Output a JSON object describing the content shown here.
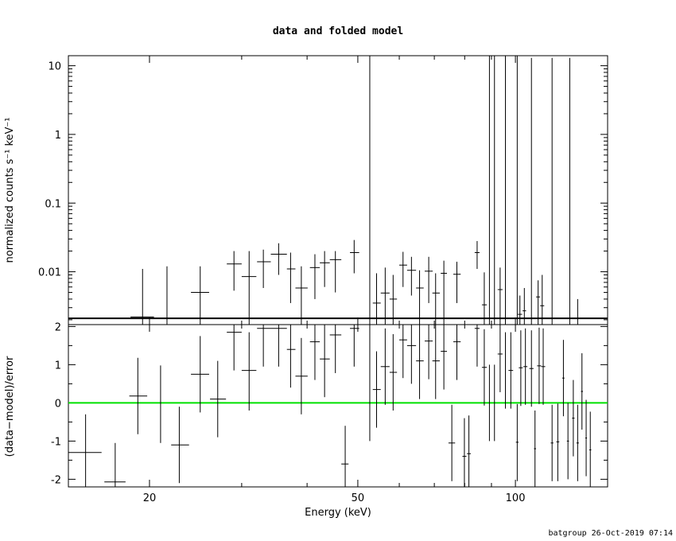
{
  "chart_data": [
    {
      "type": "scatter",
      "title": "data and folded model",
      "xlabel": "",
      "ylabel": "normalized counts s⁻¹ keV⁻¹",
      "xscale": "log",
      "yscale": "log",
      "xlim": [
        14,
        150
      ],
      "ylim": [
        0.0017,
        14
      ],
      "x_ticks": [
        20,
        50,
        100
      ],
      "y_ticks": [
        {
          "value": 10,
          "label": "10"
        },
        {
          "value": 1,
          "label": "1"
        },
        {
          "value": 0.1,
          "label": "0.1"
        },
        {
          "value": 0.01,
          "label": "0.01"
        }
      ],
      "model_line": {
        "color": "#000000",
        "value": 0.0021
      },
      "points": [
        {
          "x": 19.4,
          "xlo": 18.4,
          "xhi": 20.4,
          "y": 0.0022,
          "ylo": 0.0017,
          "yhi": 0.011
        },
        {
          "x": 21.6,
          "xlo": 21.6,
          "xhi": 21.6,
          "y": 0.0017,
          "ylo": 0.0017,
          "yhi": 0.012
        },
        {
          "x": 25.0,
          "xlo": 24.0,
          "xhi": 26.0,
          "y": 0.005,
          "ylo": 0.0017,
          "yhi": 0.012
        },
        {
          "x": 29.0,
          "xlo": 28.1,
          "xhi": 30.0,
          "y": 0.013,
          "ylo": 0.0053,
          "yhi": 0.02
        },
        {
          "x": 31.0,
          "xlo": 30.0,
          "xhi": 32.0,
          "y": 0.0085,
          "ylo": 0.0017,
          "yhi": 0.02
        },
        {
          "x": 33.0,
          "xlo": 32.1,
          "xhi": 34.1,
          "y": 0.014,
          "ylo": 0.0058,
          "yhi": 0.021
        },
        {
          "x": 35.3,
          "xlo": 34.1,
          "xhi": 36.6,
          "y": 0.018,
          "ylo": 0.009,
          "yhi": 0.026
        },
        {
          "x": 37.2,
          "xlo": 36.6,
          "xhi": 38.0,
          "y": 0.011,
          "ylo": 0.0035,
          "yhi": 0.019
        },
        {
          "x": 39.0,
          "xlo": 38.0,
          "xhi": 40.1,
          "y": 0.0058,
          "ylo": 0.0017,
          "yhi": 0.012
        },
        {
          "x": 41.4,
          "xlo": 40.5,
          "xhi": 42.3,
          "y": 0.0115,
          "ylo": 0.004,
          "yhi": 0.018
        },
        {
          "x": 43.2,
          "xlo": 42.3,
          "xhi": 44.2,
          "y": 0.0135,
          "ylo": 0.006,
          "yhi": 0.02
        },
        {
          "x": 45.3,
          "xlo": 44.2,
          "xhi": 46.5,
          "y": 0.015,
          "ylo": 0.005,
          "yhi": 0.02
        },
        {
          "x": 49.2,
          "xlo": 48.3,
          "xhi": 50.3,
          "y": 0.019,
          "ylo": 0.0095,
          "yhi": 0.029
        },
        {
          "x": 52.7,
          "xlo": 52.7,
          "xhi": 52.7,
          "y": 0.0017,
          "ylo": 0.0017,
          "yhi": 14
        },
        {
          "x": 54.3,
          "xlo": 53.4,
          "xhi": 55.3,
          "y": 0.0035,
          "ylo": 0.0017,
          "yhi": 0.0095
        },
        {
          "x": 56.4,
          "xlo": 55.3,
          "xhi": 57.5,
          "y": 0.0049,
          "ylo": 0.0017,
          "yhi": 0.0115
        },
        {
          "x": 58.4,
          "xlo": 57.5,
          "xhi": 59.4,
          "y": 0.004,
          "ylo": 0.0017,
          "yhi": 0.009
        },
        {
          "x": 61.0,
          "xlo": 60.0,
          "xhi": 62.1,
          "y": 0.0125,
          "ylo": 0.006,
          "yhi": 0.0195
        },
        {
          "x": 63.3,
          "xlo": 62.1,
          "xhi": 64.6,
          "y": 0.0105,
          "ylo": 0.0045,
          "yhi": 0.0165
        },
        {
          "x": 65.6,
          "xlo": 64.6,
          "xhi": 66.8,
          "y": 0.0058,
          "ylo": 0.0017,
          "yhi": 0.0105
        },
        {
          "x": 68.3,
          "xlo": 67.1,
          "xhi": 69.5,
          "y": 0.0102,
          "ylo": 0.0035,
          "yhi": 0.0165
        },
        {
          "x": 70.4,
          "xlo": 69.4,
          "xhi": 71.7,
          "y": 0.0049,
          "ylo": 0.0017,
          "yhi": 0.0095
        },
        {
          "x": 73.0,
          "xlo": 72.0,
          "xhi": 74.0,
          "y": 0.0095,
          "ylo": 0.0017,
          "yhi": 0.0145
        },
        {
          "x": 77.3,
          "xlo": 76.1,
          "xhi": 78.6,
          "y": 0.0092,
          "ylo": 0.0035,
          "yhi": 0.014
        },
        {
          "x": 84.5,
          "xlo": 83.6,
          "xhi": 85.4,
          "y": 0.019,
          "ylo": 0.011,
          "yhi": 0.028
        },
        {
          "x": 87.2,
          "xlo": 86.3,
          "xhi": 88.2,
          "y": 0.0033,
          "ylo": 0.0017,
          "yhi": 0.0098
        },
        {
          "x": 89.2,
          "xlo": 89.2,
          "xhi": 89.2,
          "y": 0.0017,
          "ylo": 0.0017,
          "yhi": 14
        },
        {
          "x": 91.2,
          "xlo": 91.2,
          "xhi": 91.2,
          "y": 0.0017,
          "ylo": 0.0017,
          "yhi": 14
        },
        {
          "x": 93.5,
          "xlo": 92.5,
          "xhi": 94.5,
          "y": 0.0055,
          "ylo": 0.0017,
          "yhi": 0.0115
        },
        {
          "x": 95.7,
          "xlo": 95.7,
          "xhi": 95.7,
          "y": 0.0017,
          "ylo": 0.0017,
          "yhi": 14
        },
        {
          "x": 100.8,
          "xlo": 100.8,
          "xhi": 100.8,
          "y": 0.0017,
          "ylo": 0.0017,
          "yhi": 14
        },
        {
          "x": 102.0,
          "xlo": 101.0,
          "xhi": 103.0,
          "y": 0.0024,
          "ylo": 0.0017,
          "yhi": 0.0045
        },
        {
          "x": 104.0,
          "xlo": 103.2,
          "xhi": 104.8,
          "y": 0.0027,
          "ylo": 0.0017,
          "yhi": 0.0058
        },
        {
          "x": 107.3,
          "xlo": 107.3,
          "xhi": 107.3,
          "y": 0.0017,
          "ylo": 0.0017,
          "yhi": 13
        },
        {
          "x": 110.5,
          "xlo": 109.5,
          "xhi": 111.5,
          "y": 0.0043,
          "ylo": 0.0017,
          "yhi": 0.0075
        },
        {
          "x": 112.5,
          "xlo": 111.5,
          "xhi": 113.5,
          "y": 0.0032,
          "ylo": 0.0017,
          "yhi": 0.009
        },
        {
          "x": 117.5,
          "xlo": 117.5,
          "xhi": 117.5,
          "y": 0.0017,
          "ylo": 0.0017,
          "yhi": 13
        },
        {
          "x": 127.0,
          "xlo": 127.0,
          "xhi": 127.0,
          "y": 0.0017,
          "ylo": 0.0017,
          "yhi": 13
        },
        {
          "x": 131.5,
          "xlo": 131.5,
          "xhi": 131.5,
          "y": 0.0017,
          "ylo": 0.0017,
          "yhi": 0.004
        }
      ]
    },
    {
      "type": "scatter",
      "title": "",
      "xlabel": "Energy (keV)",
      "ylabel": "(data−model)/error",
      "xscale": "log",
      "yscale": "linear",
      "xlim": [
        14,
        150
      ],
      "ylim": [
        -2.2,
        2.05
      ],
      "x_ticks": [
        20,
        50,
        100
      ],
      "y_ticks": [
        2,
        1,
        0,
        -1,
        -2
      ],
      "zero_line": {
        "color": "#00e000",
        "value": 0
      },
      "points": [
        {
          "x": 15.1,
          "xlo": 14.0,
          "xhi": 16.2,
          "y": -1.3,
          "ylo": -2.2,
          "yhi": -0.3
        },
        {
          "x": 17.2,
          "xlo": 16.4,
          "xhi": 18.0,
          "y": -2.07,
          "ylo": -2.2,
          "yhi": -1.05
        },
        {
          "x": 19.0,
          "xlo": 18.3,
          "xhi": 19.8,
          "y": 0.18,
          "ylo": -0.82,
          "yhi": 1.18
        },
        {
          "x": 21.0,
          "xlo": 21.0,
          "xhi": 21.0,
          "y": 0,
          "ylo": -1.05,
          "yhi": 0.98
        },
        {
          "x": 22.8,
          "xlo": 22.0,
          "xhi": 23.8,
          "y": -1.1,
          "ylo": -2.1,
          "yhi": -0.1
        },
        {
          "x": 25.0,
          "xlo": 24.0,
          "xhi": 26.0,
          "y": 0.75,
          "ylo": -0.25,
          "yhi": 1.75
        },
        {
          "x": 27.0,
          "xlo": 26.1,
          "xhi": 28.0,
          "y": 0.1,
          "ylo": -0.9,
          "yhi": 1.1
        },
        {
          "x": 29.0,
          "xlo": 28.1,
          "xhi": 30.0,
          "y": 1.85,
          "ylo": 0.85,
          "yhi": 2.05
        },
        {
          "x": 31.0,
          "xlo": 30.0,
          "xhi": 32.0,
          "y": 0.85,
          "ylo": -0.2,
          "yhi": 1.85
        },
        {
          "x": 33.0,
          "xlo": 32.1,
          "xhi": 34.1,
          "y": 1.95,
          "ylo": 0.95,
          "yhi": 2.05
        },
        {
          "x": 35.3,
          "xlo": 34.1,
          "xhi": 36.6,
          "y": 1.95,
          "ylo": 0.95,
          "yhi": 2.05
        },
        {
          "x": 37.2,
          "xlo": 36.6,
          "xhi": 38.0,
          "y": 1.4,
          "ylo": 0.4,
          "yhi": 2.05
        },
        {
          "x": 39.0,
          "xlo": 38.0,
          "xhi": 40.1,
          "y": 0.7,
          "ylo": -0.3,
          "yhi": 1.7
        },
        {
          "x": 41.4,
          "xlo": 40.5,
          "xhi": 42.3,
          "y": 1.6,
          "ylo": 0.6,
          "yhi": 2.05
        },
        {
          "x": 43.2,
          "xlo": 42.3,
          "xhi": 44.2,
          "y": 1.15,
          "ylo": 0.15,
          "yhi": 2.05
        },
        {
          "x": 45.3,
          "xlo": 44.2,
          "xhi": 46.5,
          "y": 1.78,
          "ylo": 0.78,
          "yhi": 2.05
        },
        {
          "x": 47.3,
          "xlo": 46.5,
          "xhi": 48.0,
          "y": -1.6,
          "ylo": -2.2,
          "yhi": -0.6
        },
        {
          "x": 49.2,
          "xlo": 48.3,
          "xhi": 50.3,
          "y": 1.95,
          "ylo": 0.95,
          "yhi": 2.05
        },
        {
          "x": 52.7,
          "xlo": 52.7,
          "xhi": 52.7,
          "y": 0,
          "ylo": -1.0,
          "yhi": 2.05
        },
        {
          "x": 54.3,
          "xlo": 53.4,
          "xhi": 55.3,
          "y": 0.35,
          "ylo": -0.65,
          "yhi": 1.35
        },
        {
          "x": 56.4,
          "xlo": 55.3,
          "xhi": 57.5,
          "y": 0.95,
          "ylo": -0.05,
          "yhi": 1.95
        },
        {
          "x": 58.4,
          "xlo": 57.5,
          "xhi": 59.4,
          "y": 0.8,
          "ylo": -0.2,
          "yhi": 1.8
        },
        {
          "x": 61.0,
          "xlo": 60.0,
          "xhi": 62.1,
          "y": 1.65,
          "ylo": 0.65,
          "yhi": 2.05
        },
        {
          "x": 63.3,
          "xlo": 62.1,
          "xhi": 64.6,
          "y": 1.5,
          "ylo": 0.5,
          "yhi": 2.05
        },
        {
          "x": 65.6,
          "xlo": 64.6,
          "xhi": 66.8,
          "y": 1.1,
          "ylo": 0.1,
          "yhi": 2.05
        },
        {
          "x": 68.3,
          "xlo": 67.1,
          "xhi": 69.5,
          "y": 1.62,
          "ylo": 0.62,
          "yhi": 2.05
        },
        {
          "x": 70.4,
          "xlo": 69.4,
          "xhi": 71.7,
          "y": 1.1,
          "ylo": 0.1,
          "yhi": 2.05
        },
        {
          "x": 73.0,
          "xlo": 72.0,
          "xhi": 74.0,
          "y": 1.35,
          "ylo": 0.35,
          "yhi": 2.05
        },
        {
          "x": 75.6,
          "xlo": 74.5,
          "xhi": 76.7,
          "y": -1.05,
          "ylo": -2.05,
          "yhi": -0.05
        },
        {
          "x": 77.3,
          "xlo": 76.1,
          "xhi": 78.6,
          "y": 1.6,
          "ylo": 0.6,
          "yhi": 2.05
        },
        {
          "x": 79.9,
          "xlo": 79.2,
          "xhi": 80.6,
          "y": -1.4,
          "ylo": -2.2,
          "yhi": -0.4
        },
        {
          "x": 81.5,
          "xlo": 80.8,
          "xhi": 82.2,
          "y": -1.33,
          "ylo": -2.2,
          "yhi": -0.33
        },
        {
          "x": 84.5,
          "xlo": 83.6,
          "xhi": 85.4,
          "y": 1.95,
          "ylo": 0.95,
          "yhi": 2.05
        },
        {
          "x": 87.2,
          "xlo": 86.3,
          "xhi": 88.2,
          "y": 0.93,
          "ylo": -0.07,
          "yhi": 1.93
        },
        {
          "x": 89.2,
          "xlo": 89.2,
          "xhi": 89.2,
          "y": 0,
          "ylo": -1.0,
          "yhi": 1.0
        },
        {
          "x": 91.2,
          "xlo": 91.2,
          "xhi": 91.2,
          "y": 0,
          "ylo": -1.0,
          "yhi": 1.0
        },
        {
          "x": 93.5,
          "xlo": 92.5,
          "xhi": 94.5,
          "y": 1.28,
          "ylo": 0.28,
          "yhi": 2.05
        },
        {
          "x": 95.7,
          "xlo": 95.7,
          "xhi": 95.7,
          "y": 0.85,
          "ylo": -0.15,
          "yhi": 1.85
        },
        {
          "x": 98.0,
          "xlo": 97.0,
          "xhi": 99.0,
          "y": 0.85,
          "ylo": -0.15,
          "yhi": 1.85
        },
        {
          "x": 100.8,
          "xlo": 100.2,
          "xhi": 101.4,
          "y": -1.03,
          "ylo": -2.05,
          "yhi": -0.03
        },
        {
          "x": 102.4,
          "xlo": 101.5,
          "xhi": 103.3,
          "y": 0.92,
          "ylo": -0.08,
          "yhi": 1.9
        },
        {
          "x": 104.5,
          "xlo": 103.6,
          "xhi": 105.4,
          "y": 0.95,
          "ylo": -0.05,
          "yhi": 1.95
        },
        {
          "x": 107.3,
          "xlo": 106.3,
          "xhi": 108.3,
          "y": 0.9,
          "ylo": -0.1,
          "yhi": 1.9
        },
        {
          "x": 109.0,
          "xlo": 108.5,
          "xhi": 109.5,
          "y": -1.2,
          "ylo": -2.2,
          "yhi": -0.2
        },
        {
          "x": 111.0,
          "xlo": 110.0,
          "xhi": 112.0,
          "y": 0.97,
          "ylo": -0.03,
          "yhi": 1.97
        },
        {
          "x": 113.0,
          "xlo": 112.0,
          "xhi": 114.0,
          "y": 0.95,
          "ylo": -0.05,
          "yhi": 1.95
        },
        {
          "x": 117.5,
          "xlo": 116.8,
          "xhi": 118.2,
          "y": -1.05,
          "ylo": -2.05,
          "yhi": -0.05
        },
        {
          "x": 120.5,
          "xlo": 119.7,
          "xhi": 121.3,
          "y": -1.02,
          "ylo": -2.05,
          "yhi": -0.02
        },
        {
          "x": 123.5,
          "xlo": 122.9,
          "xhi": 124.1,
          "y": 0.65,
          "ylo": -0.35,
          "yhi": 1.65
        },
        {
          "x": 126.0,
          "xlo": 125.4,
          "xhi": 126.6,
          "y": -1.0,
          "ylo": -2.0,
          "yhi": 0.0
        },
        {
          "x": 129.0,
          "xlo": 128.3,
          "xhi": 129.7,
          "y": -0.4,
          "ylo": -1.4,
          "yhi": 0.6
        },
        {
          "x": 131.5,
          "xlo": 130.8,
          "xhi": 132.2,
          "y": -1.05,
          "ylo": -2.05,
          "yhi": -0.05
        },
        {
          "x": 134.0,
          "xlo": 133.4,
          "xhi": 134.6,
          "y": 0.3,
          "ylo": -0.7,
          "yhi": 1.3
        },
        {
          "x": 136.5,
          "xlo": 136.0,
          "xhi": 137.0,
          "y": -0.92,
          "ylo": -1.92,
          "yhi": 0.08
        },
        {
          "x": 139.0,
          "xlo": 138.4,
          "xhi": 139.6,
          "y": -1.23,
          "ylo": -2.2,
          "yhi": -0.23
        }
      ]
    }
  ],
  "footer": "batgroup 26-Oct-2019 07:14"
}
